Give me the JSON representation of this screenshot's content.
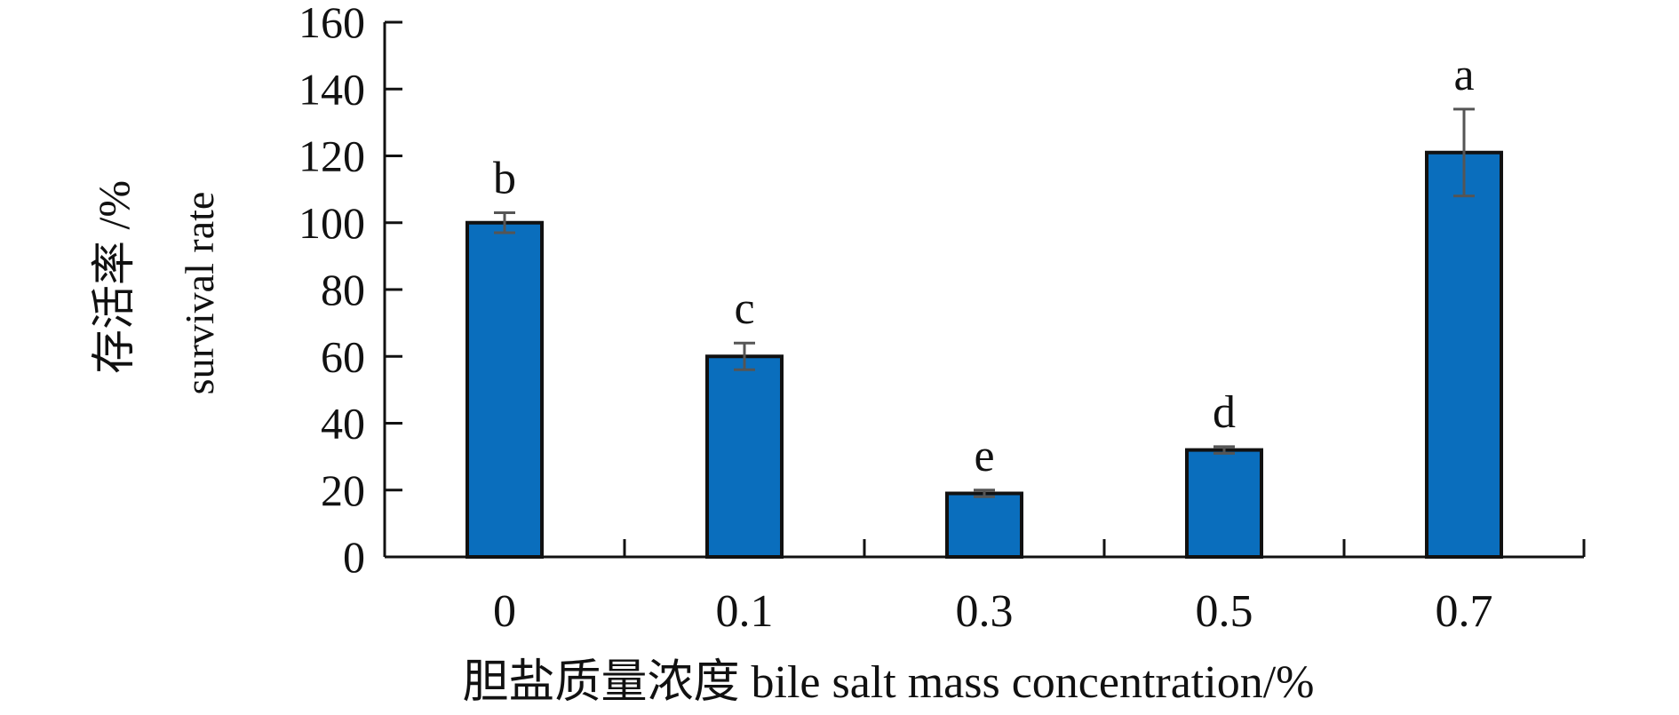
{
  "chart_data": {
    "type": "bar",
    "categories": [
      "0",
      "0.1",
      "0.3",
      "0.5",
      "0.7"
    ],
    "values": [
      100,
      60,
      19,
      32,
      121
    ],
    "error_bars": [
      3,
      4,
      1,
      1,
      13
    ],
    "significance_letters": [
      "b",
      "c",
      "e",
      "d",
      "a"
    ],
    "xlabel": "胆盐质量浓度 bile salt mass concentration/%",
    "ylabel_line1": "存活率 /%",
    "ylabel_line2": "survival rate",
    "ylim": [
      0,
      160
    ],
    "y_ticks": [
      0,
      20,
      40,
      60,
      80,
      100,
      120,
      140,
      160
    ],
    "grid": false,
    "bar_color": "#0a6ebd",
    "bar_edge_color": "#111111",
    "error_color": "#555555"
  }
}
